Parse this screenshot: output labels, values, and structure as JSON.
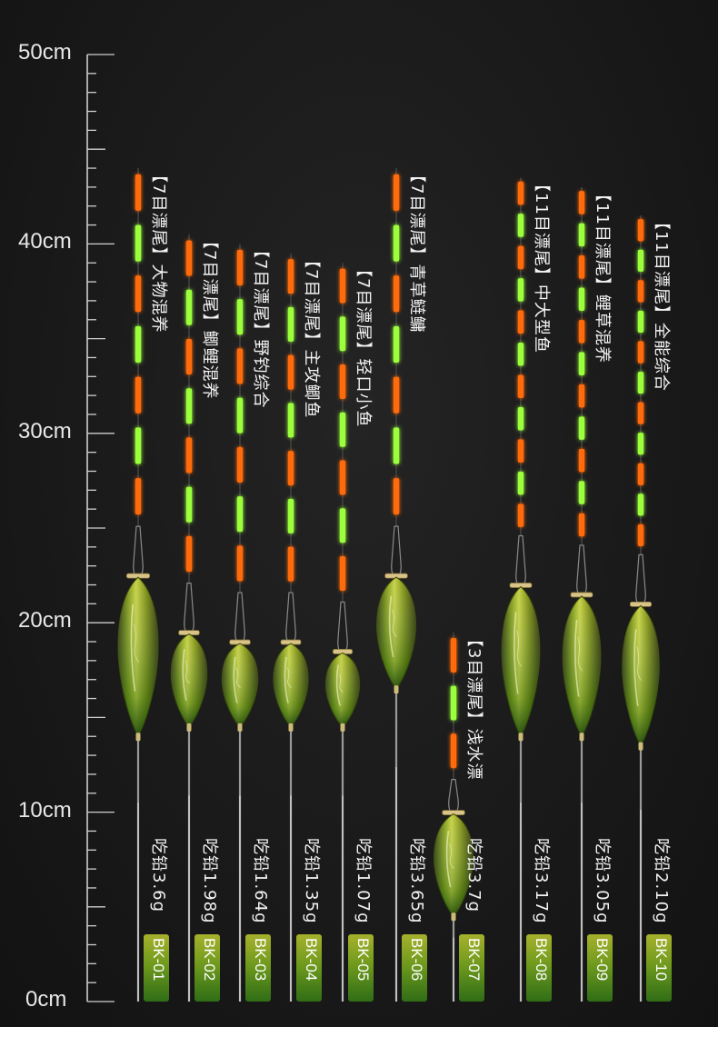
{
  "scale": {
    "unit": "cm",
    "labels": [
      "50cm",
      "40cm",
      "30cm",
      "20cm",
      "10cm",
      "0cm"
    ],
    "values": [
      50,
      40,
      30,
      20,
      10,
      0
    ],
    "max_cm": 50
  },
  "colors": {
    "background": "#1a1a1a",
    "orange_segment": "#ff6a10",
    "green_segment": "#9bff3a",
    "body_green": "#7f9a1c",
    "badge_top": "#a7b12c",
    "badge_bottom": "#2f6d16",
    "text": "#f2f2f2"
  },
  "floats": [
    {
      "code": "BK-01",
      "name": "【7目漂尾】大物混养",
      "weight": "吃铅3.6g",
      "top_cm": 44,
      "body_top_cm": 22.5,
      "body_bottom_cm": 14,
      "tail_segments": 7,
      "scale_factor": 1.0
    },
    {
      "code": "BK-02",
      "name": "【7目漂尾】鲫鲤混养",
      "weight": "吃铅1.98g",
      "top_cm": 40.5,
      "body_top_cm": 19.5,
      "body_bottom_cm": 14.5,
      "tail_segments": 7,
      "scale_factor": 0.8
    },
    {
      "code": "BK-03",
      "name": "【7目漂尾】野钓综合",
      "weight": "吃铅1.64g",
      "top_cm": 40,
      "body_top_cm": 19,
      "body_bottom_cm": 14.5,
      "tail_segments": 7,
      "scale_factor": 0.8
    },
    {
      "code": "BK-04",
      "name": "【7目漂尾】主攻鲫鱼",
      "weight": "吃铅1.35g",
      "top_cm": 39.5,
      "body_top_cm": 19,
      "body_bottom_cm": 14.5,
      "tail_segments": 7,
      "scale_factor": 0.75
    },
    {
      "code": "BK-05",
      "name": "【7目漂尾】轻口小鱼",
      "weight": "吃铅1.07g",
      "top_cm": 39,
      "body_top_cm": 18.5,
      "body_bottom_cm": 14.5,
      "tail_segments": 7,
      "scale_factor": 0.7
    },
    {
      "code": "BK-06",
      "name": "【7目漂尾】青草鲢鳙",
      "weight": "吃铅3.65g",
      "top_cm": 44,
      "body_top_cm": 22.5,
      "body_bottom_cm": 16.5,
      "tail_segments": 7,
      "scale_factor": 0.95
    },
    {
      "code": "BK-07",
      "name": "【3目漂尾】浅水漂",
      "weight": "吃铅3.7g",
      "top_cm": 19.5,
      "body_top_cm": 10,
      "body_bottom_cm": 4.5,
      "tail_segments": 3,
      "scale_factor": 0.95
    },
    {
      "code": "BK-08",
      "name": "【11目漂尾】中大型鱼",
      "weight": "吃铅3.17g",
      "top_cm": 43.5,
      "body_top_cm": 22,
      "body_bottom_cm": 14,
      "tail_segments": 11,
      "scale_factor": 0.9
    },
    {
      "code": "BK-09",
      "name": "【11目漂尾】鲤草混养",
      "weight": "吃铅3.05g",
      "top_cm": 43,
      "body_top_cm": 21.5,
      "body_bottom_cm": 14,
      "tail_segments": 11,
      "scale_factor": 0.9
    },
    {
      "code": "BK-10",
      "name": "【11目漂尾】全能综合",
      "weight": "吃铅2.10g",
      "top_cm": 41.5,
      "body_top_cm": 21,
      "body_bottom_cm": 13.5,
      "tail_segments": 11,
      "scale_factor": 0.85
    }
  ]
}
